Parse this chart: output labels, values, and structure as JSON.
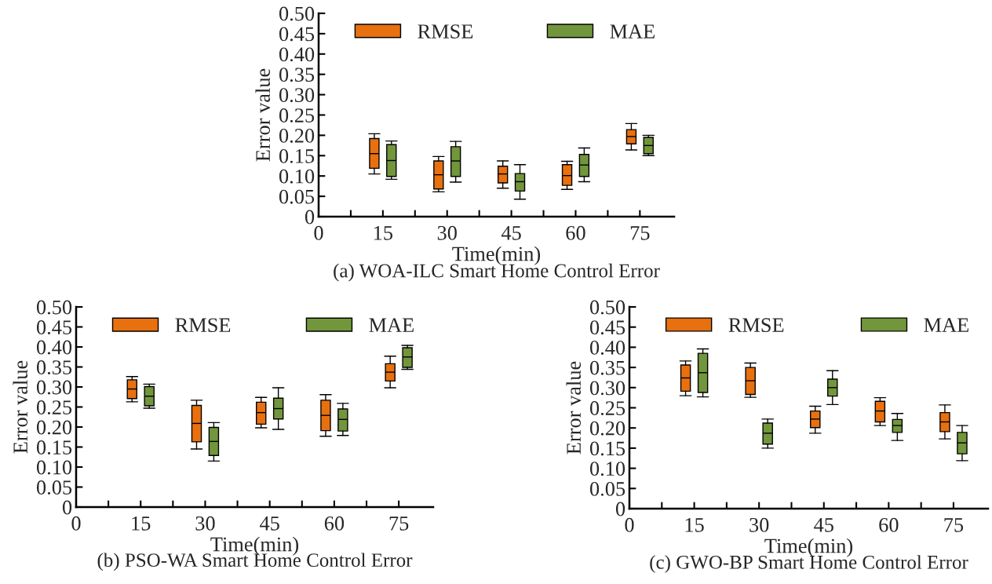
{
  "chart_data": [
    {
      "type": "box",
      "title": "(a) WOA-ILC Smart Home Control Error",
      "xlabel": "Time(min)",
      "ylabel": "Error value",
      "legend": "top",
      "grid": false,
      "xlim": [
        0,
        83
      ],
      "xticks": [
        0,
        {
          "value": 7.5,
          "label": null
        },
        15,
        {
          "value": 22.5,
          "label": null
        },
        30,
        {
          "value": 37.5,
          "label": null
        },
        45,
        {
          "value": 52.5,
          "label": null
        },
        60,
        {
          "value": 67.5,
          "label": null
        },
        75
      ],
      "ylim": [
        0,
        0.5
      ],
      "yticks": [
        0,
        {
          "value": 0.05,
          "label": "0.05"
        },
        {
          "value": 0.1,
          "label": "0.10"
        },
        {
          "value": 0.15,
          "label": "0.15"
        },
        {
          "value": 0.2,
          "label": "0.20"
        },
        {
          "value": 0.25,
          "label": "0.25"
        },
        {
          "value": 0.3,
          "label": "0.30"
        },
        {
          "value": 0.35,
          "label": "0.35"
        },
        {
          "value": 0.4,
          "label": "0.40"
        },
        {
          "value": 0.45,
          "label": "0.45"
        },
        {
          "value": 0.5,
          "label": "0.50"
        }
      ],
      "series": [
        {
          "name": "RMSE",
          "color": "#e8700f",
          "x": [
            13,
            28,
            43,
            58,
            73
          ],
          "boxes": [
            {
              "low": 0.105,
              "q1": 0.119,
              "median": 0.155,
              "q3": 0.192,
              "high": 0.204
            },
            {
              "low": 0.061,
              "q1": 0.068,
              "median": 0.103,
              "q3": 0.137,
              "high": 0.148
            },
            {
              "low": 0.07,
              "q1": 0.083,
              "median": 0.105,
              "q3": 0.124,
              "high": 0.137
            },
            {
              "low": 0.067,
              "q1": 0.077,
              "median": 0.101,
              "q3": 0.128,
              "high": 0.136
            },
            {
              "low": 0.164,
              "q1": 0.179,
              "median": 0.197,
              "q3": 0.214,
              "high": 0.229
            }
          ]
        },
        {
          "name": "MAE",
          "color": "#72963c",
          "x": [
            17,
            32,
            47,
            62,
            77
          ],
          "boxes": [
            {
              "low": 0.092,
              "q1": 0.099,
              "median": 0.138,
              "q3": 0.177,
              "high": 0.186
            },
            {
              "low": 0.085,
              "q1": 0.099,
              "median": 0.137,
              "q3": 0.172,
              "high": 0.185
            },
            {
              "low": 0.043,
              "q1": 0.063,
              "median": 0.086,
              "q3": 0.106,
              "high": 0.128
            },
            {
              "low": 0.086,
              "q1": 0.099,
              "median": 0.127,
              "q3": 0.153,
              "high": 0.169
            },
            {
              "low": 0.15,
              "q1": 0.155,
              "median": 0.175,
              "q3": 0.195,
              "high": 0.2
            }
          ]
        }
      ]
    },
    {
      "type": "box",
      "title": "(b) PSO-WA Smart Home Control Error",
      "xlabel": "Time(min)",
      "ylabel": "Error value",
      "legend": "top",
      "grid": false,
      "xlim": [
        0,
        83
      ],
      "xticks": [
        0,
        {
          "value": 7.5,
          "label": null
        },
        15,
        {
          "value": 22.5,
          "label": null
        },
        30,
        {
          "value": 37.5,
          "label": null
        },
        45,
        {
          "value": 52.5,
          "label": null
        },
        60,
        {
          "value": 67.5,
          "label": null
        },
        75
      ],
      "ylim": [
        0,
        0.5
      ],
      "yticks": [
        0,
        {
          "value": 0.05,
          "label": "0.05"
        },
        {
          "value": 0.1,
          "label": "0.10"
        },
        {
          "value": 0.15,
          "label": "0.15"
        },
        {
          "value": 0.2,
          "label": "0.20"
        },
        {
          "value": 0.25,
          "label": "0.25"
        },
        {
          "value": 0.3,
          "label": "0.30"
        },
        {
          "value": 0.35,
          "label": "0.35"
        },
        {
          "value": 0.4,
          "label": "0.40"
        },
        {
          "value": 0.45,
          "label": "0.45"
        },
        {
          "value": 0.5,
          "label": "0.50"
        }
      ],
      "series": [
        {
          "name": "RMSE",
          "color": "#e8700f",
          "x": [
            13,
            28,
            43,
            58,
            73
          ],
          "boxes": [
            {
              "low": 0.263,
              "q1": 0.271,
              "median": 0.295,
              "q3": 0.318,
              "high": 0.326
            },
            {
              "low": 0.145,
              "q1": 0.163,
              "median": 0.209,
              "q3": 0.254,
              "high": 0.267
            },
            {
              "low": 0.198,
              "q1": 0.207,
              "median": 0.236,
              "q3": 0.262,
              "high": 0.274
            },
            {
              "low": 0.177,
              "q1": 0.191,
              "median": 0.229,
              "q3": 0.267,
              "high": 0.281
            },
            {
              "low": 0.298,
              "q1": 0.315,
              "median": 0.337,
              "q3": 0.358,
              "high": 0.377
            }
          ]
        },
        {
          "name": "MAE",
          "color": "#72963c",
          "x": [
            17,
            32,
            47,
            62,
            77
          ],
          "boxes": [
            {
              "low": 0.247,
              "q1": 0.253,
              "median": 0.277,
              "q3": 0.301,
              "high": 0.307
            },
            {
              "low": 0.115,
              "q1": 0.129,
              "median": 0.164,
              "q3": 0.199,
              "high": 0.211
            },
            {
              "low": 0.194,
              "q1": 0.22,
              "median": 0.246,
              "q3": 0.272,
              "high": 0.298
            },
            {
              "low": 0.179,
              "q1": 0.19,
              "median": 0.219,
              "q3": 0.245,
              "high": 0.259
            },
            {
              "low": 0.344,
              "q1": 0.349,
              "median": 0.375,
              "q3": 0.398,
              "high": 0.404
            }
          ]
        }
      ]
    },
    {
      "type": "box",
      "title": "(c) GWO-BP Smart Home Control Error",
      "xlabel": "Time(min)",
      "ylabel": "Error value",
      "legend": "top",
      "grid": false,
      "xlim": [
        0,
        83
      ],
      "xticks": [
        0,
        {
          "value": 7.5,
          "label": null
        },
        15,
        {
          "value": 22.5,
          "label": null
        },
        30,
        {
          "value": 37.5,
          "label": null
        },
        45,
        {
          "value": 52.5,
          "label": null
        },
        60,
        {
          "value": 67.5,
          "label": null
        },
        75
      ],
      "ylim": [
        0,
        0.5
      ],
      "yticks": [
        0,
        {
          "value": 0.05,
          "label": "0.05"
        },
        {
          "value": 0.1,
          "label": "0.10"
        },
        {
          "value": 0.15,
          "label": "0.15"
        },
        {
          "value": 0.2,
          "label": "0.20"
        },
        {
          "value": 0.25,
          "label": "0.25"
        },
        {
          "value": 0.3,
          "label": "0.30"
        },
        {
          "value": 0.35,
          "label": "0.35"
        },
        {
          "value": 0.4,
          "label": "0.40"
        },
        {
          "value": 0.45,
          "label": "0.45"
        },
        {
          "value": 0.5,
          "label": "0.50"
        }
      ],
      "series": [
        {
          "name": "RMSE",
          "color": "#e8700f",
          "x": [
            13,
            28,
            43,
            58,
            73
          ],
          "boxes": [
            {
              "low": 0.28,
              "q1": 0.291,
              "median": 0.324,
              "q3": 0.356,
              "high": 0.366
            },
            {
              "low": 0.276,
              "q1": 0.283,
              "median": 0.317,
              "q3": 0.35,
              "high": 0.361
            },
            {
              "low": 0.187,
              "q1": 0.201,
              "median": 0.222,
              "q3": 0.242,
              "high": 0.254
            },
            {
              "low": 0.206,
              "q1": 0.215,
              "median": 0.242,
              "q3": 0.266,
              "high": 0.275
            },
            {
              "low": 0.173,
              "q1": 0.191,
              "median": 0.215,
              "q3": 0.238,
              "high": 0.257
            }
          ]
        },
        {
          "name": "MAE",
          "color": "#72963c",
          "x": [
            17,
            32,
            47,
            62,
            77
          ],
          "boxes": [
            {
              "low": 0.277,
              "q1": 0.288,
              "median": 0.337,
              "q3": 0.385,
              "high": 0.396
            },
            {
              "low": 0.15,
              "q1": 0.16,
              "median": 0.187,
              "q3": 0.212,
              "high": 0.222
            },
            {
              "low": 0.258,
              "q1": 0.279,
              "median": 0.3,
              "q3": 0.321,
              "high": 0.342
            },
            {
              "low": 0.169,
              "q1": 0.189,
              "median": 0.206,
              "q3": 0.221,
              "high": 0.236
            },
            {
              "low": 0.119,
              "q1": 0.136,
              "median": 0.163,
              "q3": 0.189,
              "high": 0.206
            }
          ]
        }
      ]
    }
  ]
}
